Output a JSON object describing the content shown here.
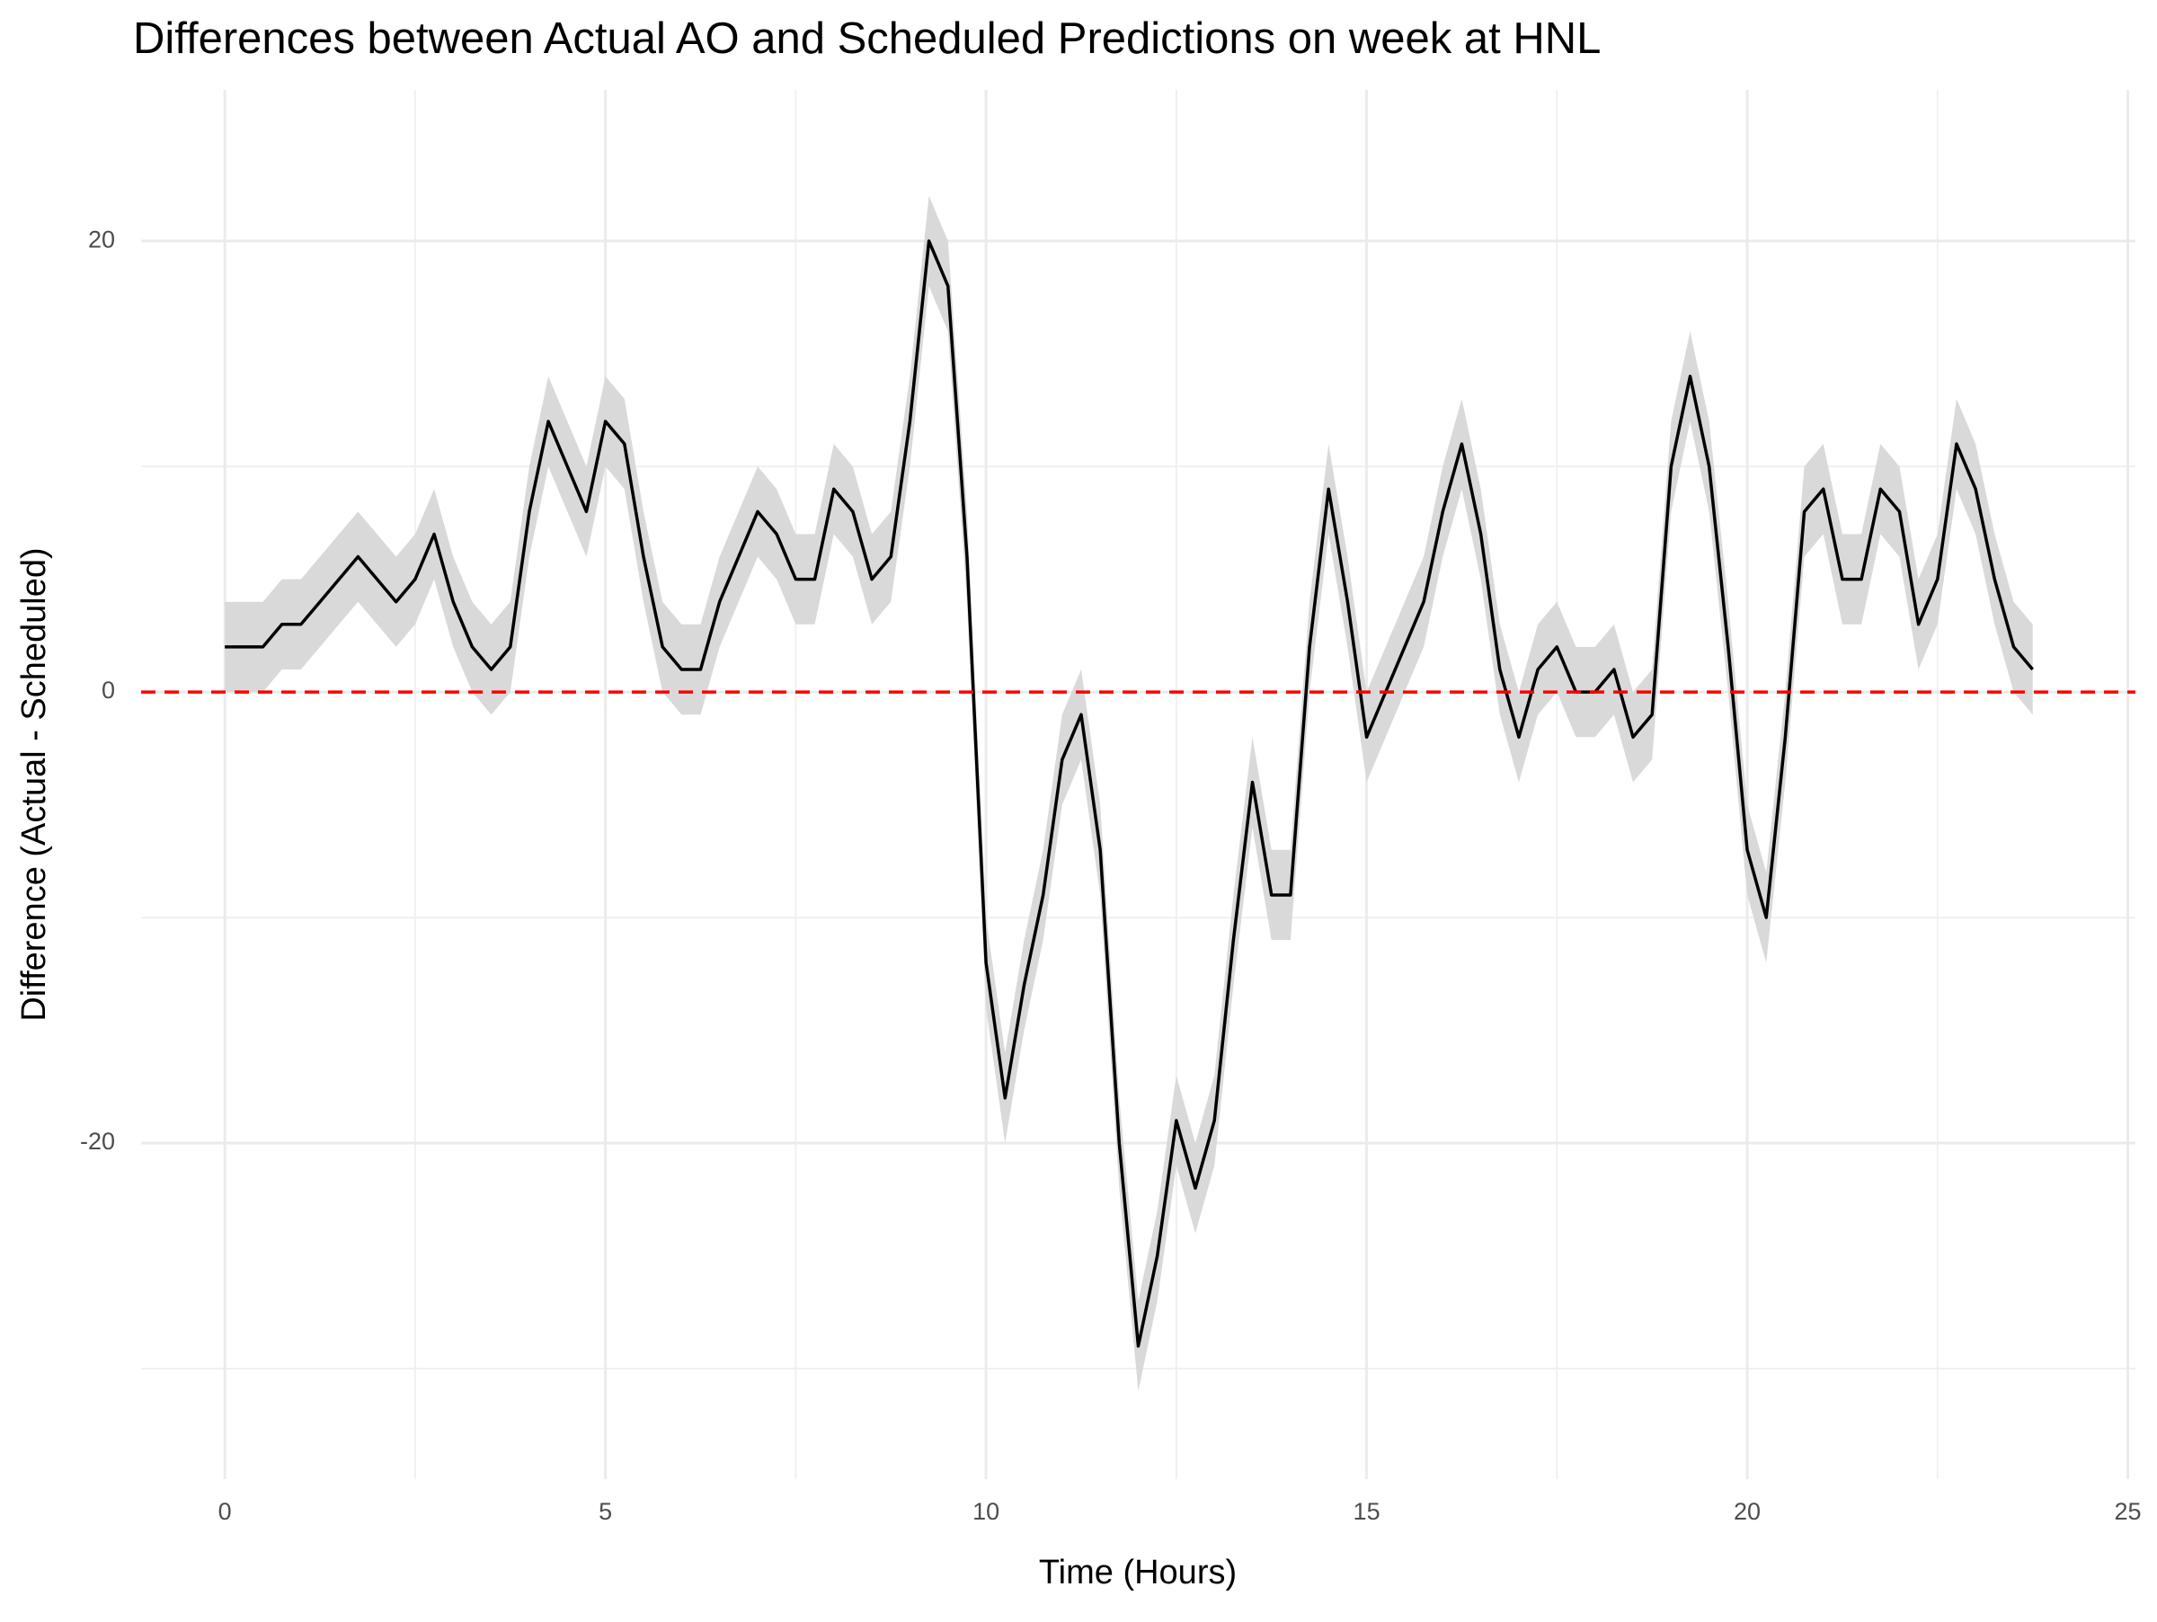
{
  "chart_data": {
    "type": "line",
    "title": "Differences between Actual AO and Scheduled Predictions on week at HNL",
    "x_label": "Time (Hours)",
    "y_label": "Difference (Actual - Scheduled)",
    "x": [
      0,
      0.25,
      0.5,
      0.75,
      1,
      1.25,
      1.5,
      1.75,
      2,
      2.25,
      2.5,
      2.75,
      3,
      3.25,
      3.5,
      3.75,
      4,
      4.25,
      4.5,
      4.75,
      5,
      5.25,
      5.5,
      5.75,
      6,
      6.25,
      6.5,
      6.75,
      7,
      7.25,
      7.5,
      7.75,
      8,
      8.25,
      8.5,
      8.75,
      9,
      9.25,
      9.5,
      9.75,
      10,
      10.25,
      10.5,
      10.75,
      11,
      11.25,
      11.5,
      11.75,
      12,
      12.25,
      12.5,
      12.75,
      13,
      13.25,
      13.5,
      13.75,
      14,
      14.25,
      14.5,
      14.75,
      15,
      15.25,
      15.5,
      15.75,
      16,
      16.25,
      16.5,
      16.75,
      17,
      17.25,
      17.5,
      17.75,
      18,
      18.25,
      18.5,
      18.75,
      19,
      19.25,
      19.5,
      19.75,
      20,
      20.25,
      20.5,
      20.75,
      21,
      21.25,
      21.5,
      21.75,
      22,
      22.25,
      22.5,
      22.75,
      23,
      23.25,
      23.5,
      23.75
    ],
    "series": [
      {
        "color": "#000000",
        "band_color": "#d9d9d9",
        "values": [
          2,
          2,
          2,
          3,
          3,
          4,
          5,
          6,
          5,
          4,
          5,
          7,
          4,
          2,
          1,
          2,
          8,
          12,
          10,
          8,
          12,
          11,
          6,
          2,
          1,
          1,
          4,
          6,
          8,
          7,
          5,
          5,
          9,
          8,
          5,
          6,
          12,
          20,
          18,
          6,
          -12,
          -18,
          -13,
          -9,
          -3,
          -1,
          -7,
          -20,
          -29,
          -25,
          -19,
          -22,
          -19,
          -11,
          -4,
          -9,
          -9,
          2,
          9,
          4,
          -2,
          0,
          2,
          4,
          8,
          11,
          7,
          1,
          -2,
          1,
          2,
          0,
          0,
          1,
          -2,
          -1,
          10,
          14,
          10,
          2,
          -7,
          -10,
          -2,
          8,
          9,
          5,
          5,
          9,
          8,
          3,
          5,
          11,
          9,
          5,
          2,
          1
        ],
        "lower": [
          0,
          0,
          0,
          1,
          1,
          2,
          3,
          4,
          3,
          2,
          3,
          5,
          2,
          0,
          -1,
          0,
          6,
          10,
          8,
          6,
          10,
          9,
          4,
          0,
          -1,
          -1,
          2,
          4,
          6,
          5,
          3,
          3,
          7,
          6,
          3,
          4,
          10,
          18,
          16,
          4,
          -14,
          -20,
          -15,
          -11,
          -5,
          -3,
          -9,
          -22,
          -31,
          -27,
          -21,
          -24,
          -21,
          -13,
          -6,
          -11,
          -11,
          0,
          7,
          2,
          -4,
          -2,
          0,
          2,
          6,
          9,
          5,
          -1,
          -4,
          -1,
          0,
          -2,
          -2,
          -1,
          -4,
          -3,
          8,
          12,
          8,
          0,
          -9,
          -12,
          -4,
          6,
          7,
          3,
          3,
          7,
          6,
          1,
          3,
          9,
          7,
          3,
          0,
          -1
        ],
        "upper": [
          4,
          4,
          4,
          5,
          5,
          6,
          7,
          8,
          7,
          6,
          7,
          9,
          6,
          4,
          3,
          4,
          10,
          14,
          12,
          10,
          14,
          13,
          8,
          4,
          3,
          3,
          6,
          8,
          10,
          9,
          7,
          7,
          11,
          10,
          7,
          8,
          14,
          22,
          20,
          8,
          -10,
          -16,
          -11,
          -7,
          -1,
          1,
          -5,
          -18,
          -27,
          -23,
          -17,
          -20,
          -17,
          -9,
          -2,
          -7,
          -7,
          4,
          11,
          6,
          0,
          2,
          4,
          6,
          10,
          13,
          9,
          3,
          0,
          3,
          4,
          2,
          2,
          3,
          0,
          1,
          12,
          16,
          12,
          4,
          -5,
          -8,
          0,
          10,
          11,
          7,
          7,
          11,
          10,
          5,
          7,
          13,
          11,
          7,
          4,
          3
        ]
      }
    ],
    "hline": {
      "value": 0,
      "color": "#ff0000"
    },
    "xlim": [
      -1.1,
      25.1
    ],
    "xticks": [
      0,
      5,
      10,
      15,
      20,
      25
    ],
    "ylim": [
      -34.9,
      26.7
    ],
    "yticks": [
      -20,
      0,
      20
    ],
    "grid": true,
    "minor_grid": true
  }
}
